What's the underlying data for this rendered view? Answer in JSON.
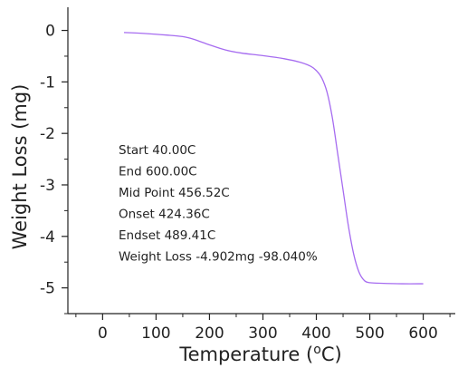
{
  "chart_data": {
    "type": "line",
    "xlabel": "Temperature (",
    "xlabel_sup": "o",
    "xlabel_suffix": "C)",
    "ylabel": "Weight Loss (mg)",
    "xlim": [
      -65,
      660
    ],
    "ylim": [
      -5.5,
      0.45
    ],
    "x_ticks": [
      0,
      100,
      200,
      300,
      400,
      500,
      600
    ],
    "y_ticks": [
      0,
      -1,
      -2,
      -3,
      -4,
      -5
    ],
    "x_tick_labels": [
      "0",
      "100",
      "200",
      "300",
      "400",
      "500",
      "600"
    ],
    "y_tick_labels": [
      "0",
      "-1",
      "-2",
      "-3",
      "-4",
      "-5"
    ],
    "grid": false,
    "series": [
      {
        "color": "#a66cf0",
        "x": [
          40,
          80,
          120,
          150,
          170,
          200,
          230,
          260,
          300,
          340,
          370,
          390,
          400,
          410,
          420,
          430,
          440,
          450,
          460,
          470,
          480,
          490,
          500,
          520,
          560,
          600
        ],
        "y": [
          -0.04,
          -0.06,
          -0.09,
          -0.12,
          -0.17,
          -0.28,
          -0.38,
          -0.44,
          -0.49,
          -0.55,
          -0.62,
          -0.7,
          -0.78,
          -0.92,
          -1.2,
          -1.7,
          -2.4,
          -3.1,
          -3.8,
          -4.35,
          -4.7,
          -4.86,
          -4.9,
          -4.91,
          -4.92,
          -4.92
        ]
      }
    ],
    "annotations": [
      "Start 40.00C",
      "End 600.00C",
      "Mid Point 456.52C",
      "Onset 424.36C",
      "Endset 489.41C",
      "Weight Loss -4.902mg -98.040%"
    ]
  }
}
